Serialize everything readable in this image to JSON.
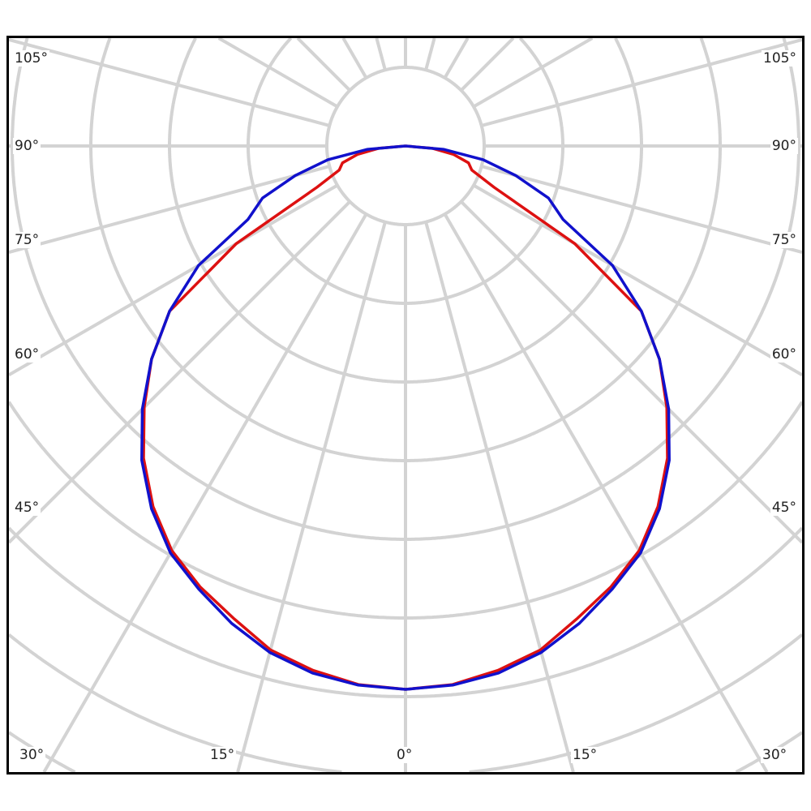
{
  "chart_data": {
    "type": "polar-line",
    "title": "",
    "angle_unit": "degrees",
    "zero_direction": "down",
    "symmetric": true,
    "grid": true,
    "ray_step_deg": 15,
    "angle_labels": {
      "left": [
        "105°",
        "90°",
        "75°",
        "60°",
        "45°"
      ],
      "right": [
        "105°",
        "90°",
        "75°",
        "60°",
        "45°"
      ],
      "bottom": [
        "30°",
        "15°",
        "0°",
        "15°",
        "30°"
      ]
    },
    "radial_unit": "relative intensity (% of value at 0°)",
    "angles": [
      0,
      5,
      10,
      15,
      20,
      25,
      30,
      35,
      40,
      45,
      50,
      55,
      60,
      65,
      70,
      75,
      80,
      85,
      90
    ],
    "series": [
      {
        "color": "#dd1111",
        "values": [
          100,
          99.5,
          98,
          96,
          92.5,
          89.5,
          86,
          81,
          75,
          68,
          61,
          53,
          36,
          18,
          13,
          12,
          9,
          5,
          0
        ]
      },
      {
        "color": "#1111cc",
        "values": [
          100,
          99.6,
          98.5,
          96.5,
          93.5,
          90,
          86.5,
          81.5,
          75.5,
          68.5,
          61,
          53,
          44,
          32,
          28,
          21,
          14.5,
          7,
          0
        ]
      }
    ],
    "colors": {
      "grid": "#d3d3d3",
      "frame": "#000000"
    }
  }
}
